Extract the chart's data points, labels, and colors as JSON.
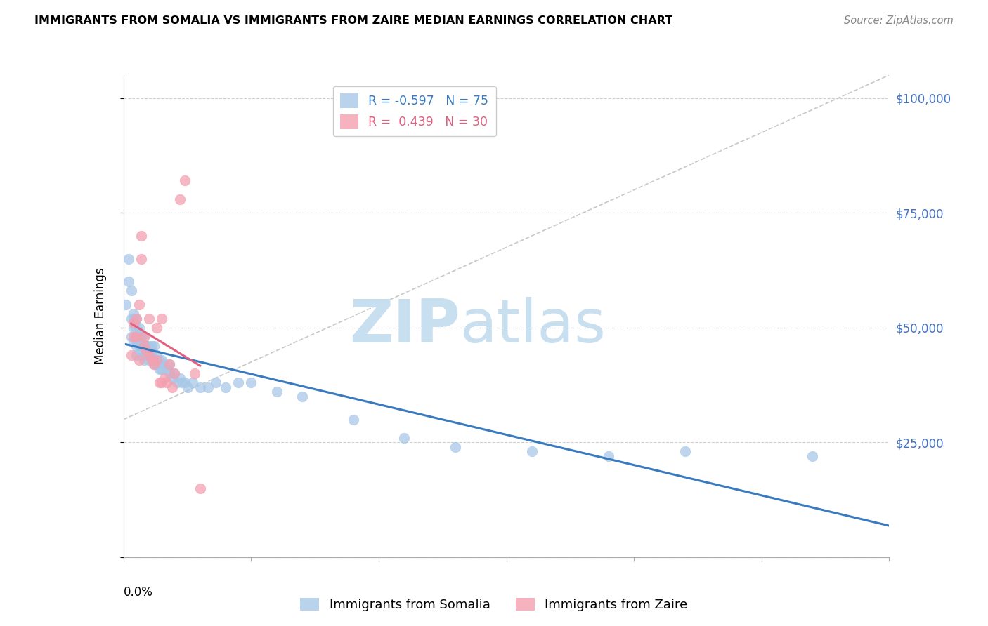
{
  "title": "IMMIGRANTS FROM SOMALIA VS IMMIGRANTS FROM ZAIRE MEDIAN EARNINGS CORRELATION CHART",
  "source": "Source: ZipAtlas.com",
  "ylabel": "Median Earnings",
  "yticks": [
    0,
    25000,
    50000,
    75000,
    100000
  ],
  "ytick_labels": [
    "",
    "$25,000",
    "$50,000",
    "$75,000",
    "$100,000"
  ],
  "xlim": [
    0.0,
    0.3
  ],
  "ylim": [
    0,
    105000
  ],
  "somalia_R": -0.597,
  "somalia_N": 75,
  "zaire_R": 0.439,
  "zaire_N": 30,
  "somalia_color": "#a8c8e8",
  "zaire_color": "#f4a0b0",
  "somalia_line_color": "#3a7bbf",
  "zaire_line_color": "#e06080",
  "diagonal_color": "#c8c8c8",
  "watermark_zip": "ZIP",
  "watermark_atlas": "atlas",
  "watermark_color": "#c8dff0",
  "somalia_x": [
    0.001,
    0.002,
    0.002,
    0.003,
    0.003,
    0.003,
    0.004,
    0.004,
    0.004,
    0.004,
    0.005,
    0.005,
    0.005,
    0.005,
    0.005,
    0.005,
    0.006,
    0.006,
    0.006,
    0.006,
    0.006,
    0.007,
    0.007,
    0.007,
    0.007,
    0.008,
    0.008,
    0.008,
    0.008,
    0.009,
    0.009,
    0.009,
    0.01,
    0.01,
    0.01,
    0.01,
    0.011,
    0.011,
    0.011,
    0.012,
    0.012,
    0.012,
    0.013,
    0.013,
    0.014,
    0.014,
    0.015,
    0.015,
    0.016,
    0.017,
    0.018,
    0.018,
    0.019,
    0.02,
    0.021,
    0.022,
    0.023,
    0.024,
    0.025,
    0.027,
    0.03,
    0.033,
    0.036,
    0.04,
    0.045,
    0.05,
    0.06,
    0.07,
    0.09,
    0.11,
    0.13,
    0.16,
    0.19,
    0.22,
    0.27
  ],
  "somalia_y": [
    55000,
    65000,
    60000,
    58000,
    52000,
    48000,
    50000,
    53000,
    47000,
    52000,
    47000,
    50000,
    52000,
    48000,
    46000,
    44000,
    47000,
    48000,
    50000,
    46000,
    48000,
    46000,
    48000,
    45000,
    44000,
    46000,
    48000,
    45000,
    43000,
    44000,
    46000,
    45000,
    45000,
    43000,
    44000,
    46000,
    44000,
    46000,
    45000,
    43000,
    46000,
    42000,
    44000,
    42000,
    43000,
    41000,
    43000,
    41000,
    42000,
    41000,
    40000,
    42000,
    39000,
    40000,
    38000,
    39000,
    38000,
    38000,
    37000,
    38000,
    37000,
    37000,
    38000,
    37000,
    38000,
    38000,
    36000,
    35000,
    30000,
    26000,
    24000,
    23000,
    22000,
    23000,
    22000
  ],
  "zaire_x": [
    0.003,
    0.004,
    0.004,
    0.005,
    0.005,
    0.006,
    0.006,
    0.007,
    0.007,
    0.008,
    0.008,
    0.009,
    0.01,
    0.01,
    0.011,
    0.012,
    0.013,
    0.013,
    0.014,
    0.015,
    0.015,
    0.016,
    0.017,
    0.018,
    0.019,
    0.02,
    0.022,
    0.024,
    0.028,
    0.03
  ],
  "zaire_y": [
    44000,
    48000,
    51000,
    48000,
    52000,
    55000,
    43000,
    65000,
    70000,
    48000,
    46000,
    45000,
    44000,
    52000,
    43000,
    42000,
    50000,
    43000,
    38000,
    52000,
    38000,
    39000,
    38000,
    42000,
    37000,
    40000,
    78000,
    82000,
    40000,
    15000
  ]
}
